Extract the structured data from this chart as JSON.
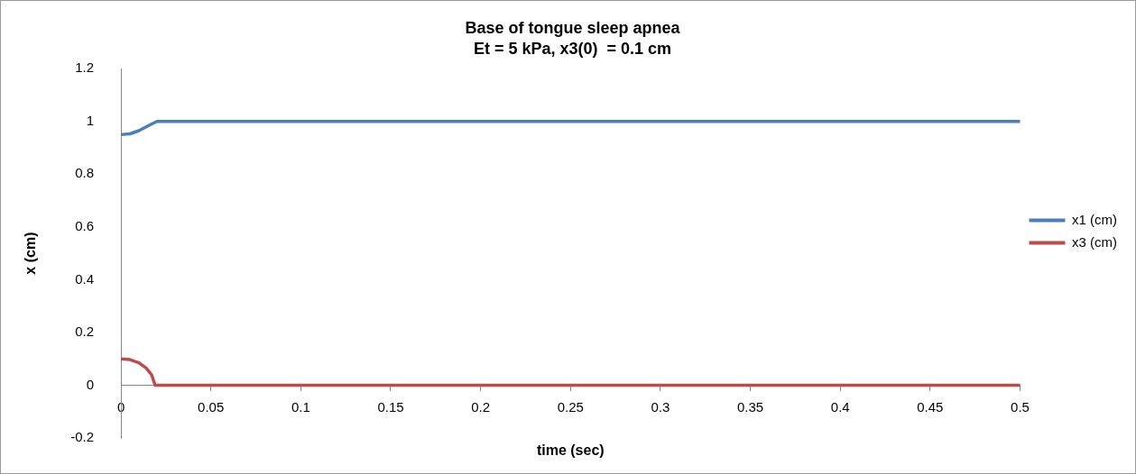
{
  "chart_data": {
    "type": "line",
    "title": "Base of tongue sleep apnea",
    "subtitle": "Et = 5 kPa, x3(0)  = 0.1 cm",
    "xlabel": "time (sec)",
    "ylabel": "x (cm)",
    "series": [
      {
        "name": "x1 (cm)",
        "color": "#4a7ebb",
        "x": [
          0,
          0.005,
          0.01,
          0.015,
          0.02,
          0.1,
          0.2,
          0.3,
          0.4,
          0.5
        ],
        "values": [
          0.95,
          0.953,
          0.965,
          0.983,
          1,
          1,
          1,
          1,
          1,
          1
        ]
      },
      {
        "name": "x3 (cm)",
        "color": "#be4b48",
        "x": [
          0,
          0.005,
          0.01,
          0.014,
          0.017,
          0.019,
          0.1,
          0.2,
          0.3,
          0.4,
          0.5
        ],
        "values": [
          0.1,
          0.097,
          0.085,
          0.065,
          0.04,
          0,
          0,
          0,
          0,
          0,
          0
        ]
      }
    ],
    "xlim": [
      0,
      0.5
    ],
    "xticks": [
      0,
      0.05,
      0.1,
      0.15,
      0.2,
      0.25,
      0.3,
      0.35,
      0.4,
      0.45,
      0.5
    ],
    "ylim": [
      -0.2,
      1.2
    ],
    "yticks": [
      -0.2,
      0,
      0.2,
      0.4,
      0.6,
      0.8,
      1,
      1.2
    ],
    "grid": false,
    "legend": "right",
    "marker": "none",
    "line_style": "solid"
  }
}
